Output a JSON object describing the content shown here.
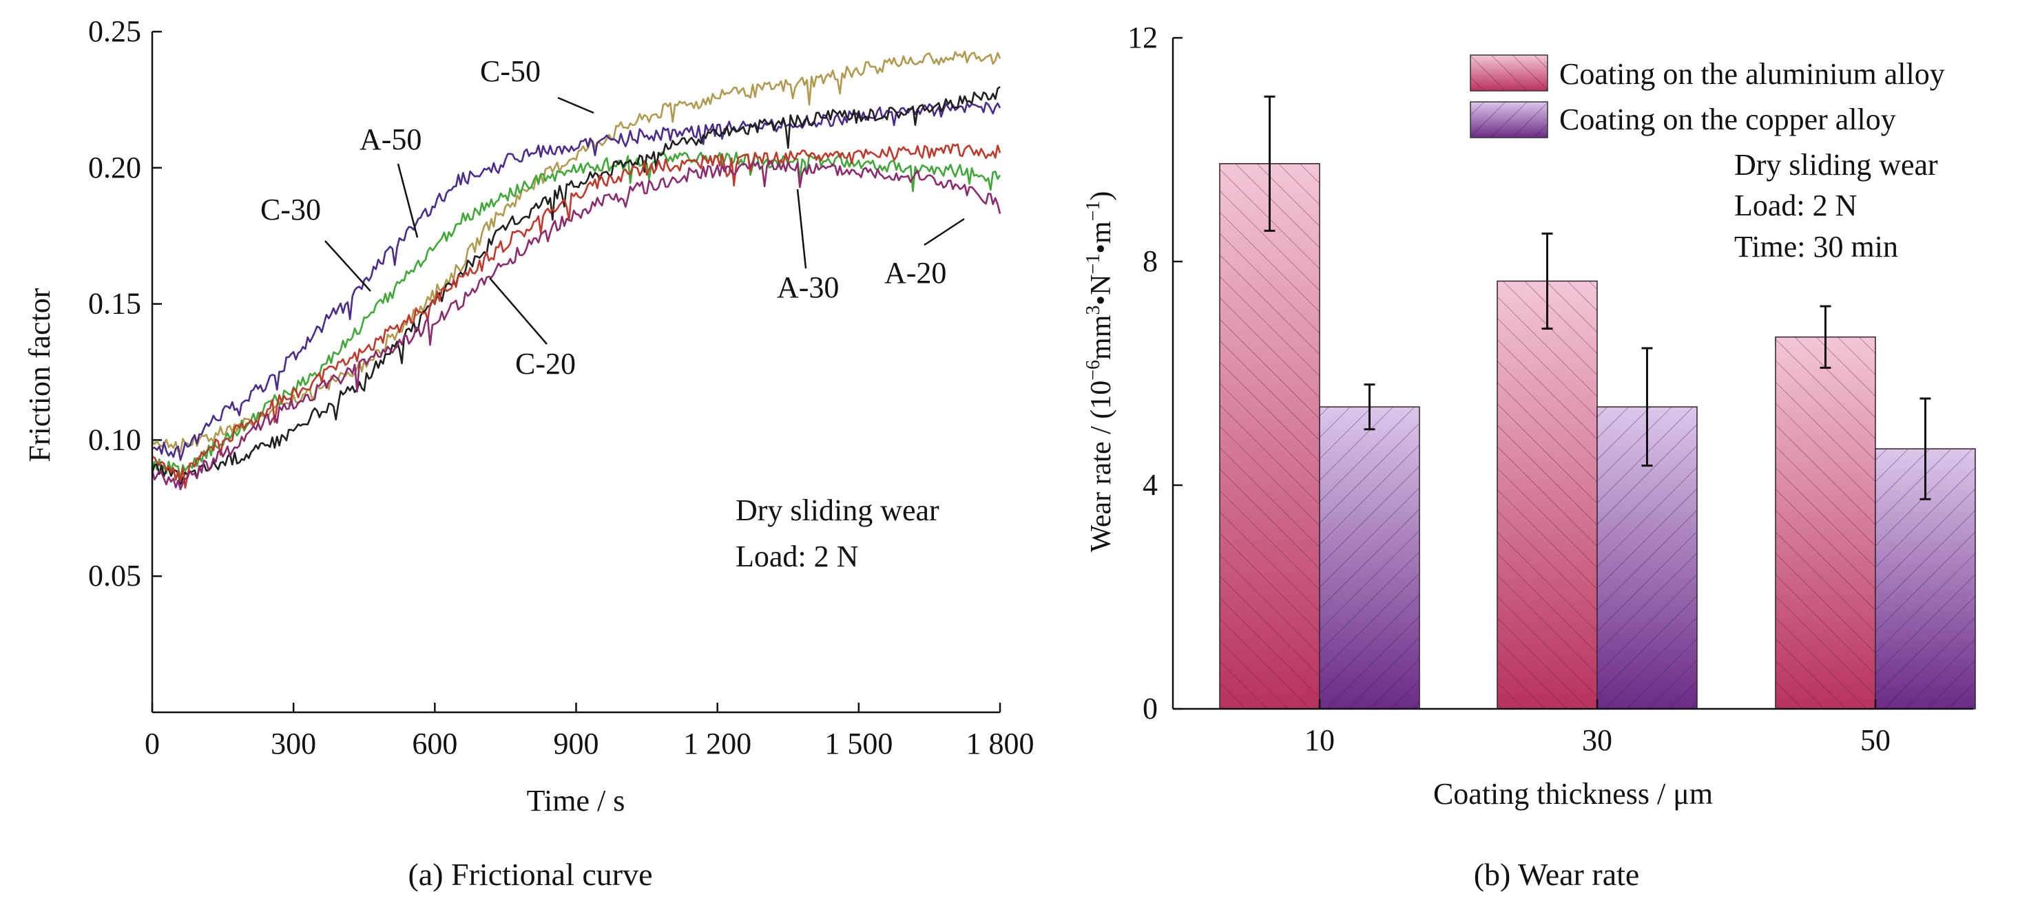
{
  "chart_data": [
    {
      "type": "line",
      "caption": "(a) Frictional curve",
      "xlabel": "Time / s",
      "ylabel": "Friction factor",
      "xlim": [
        0,
        1800
      ],
      "ylim": [
        0,
        0.25
      ],
      "xticks": [
        0,
        300,
        600,
        900,
        1200,
        1500,
        1800
      ],
      "xtick_labels": [
        "0",
        "300",
        "600",
        "900",
        "1 200",
        "1 500",
        "1 800"
      ],
      "yticks": [
        0.05,
        0.1,
        0.15,
        0.2,
        0.25
      ],
      "ytick_labels": [
        "0.05",
        "0.10",
        "0.15",
        "0.20",
        "0.25"
      ],
      "annotation": [
        "Dry sliding wear",
        "Load: 2 N"
      ],
      "series": [
        {
          "name": "C-50",
          "color": "#b09a4e",
          "points": [
            [
              0,
              0.1
            ],
            [
              60,
              0.098
            ],
            [
              150,
              0.103
            ],
            [
              250,
              0.11
            ],
            [
              350,
              0.118
            ],
            [
              450,
              0.128
            ],
            [
              550,
              0.145
            ],
            [
              650,
              0.163
            ],
            [
              720,
              0.18
            ],
            [
              800,
              0.193
            ],
            [
              900,
              0.205
            ],
            [
              1000,
              0.215
            ],
            [
              1100,
              0.222
            ],
            [
              1200,
              0.226
            ],
            [
              1300,
              0.229
            ],
            [
              1400,
              0.232
            ],
            [
              1500,
              0.236
            ],
            [
              1600,
              0.239
            ],
            [
              1700,
              0.241
            ],
            [
              1800,
              0.24
            ]
          ]
        },
        {
          "name": "A-50",
          "color": "#4b2c8c",
          "points": [
            [
              0,
              0.098
            ],
            [
              60,
              0.095
            ],
            [
              150,
              0.11
            ],
            [
              250,
              0.122
            ],
            [
              350,
              0.14
            ],
            [
              450,
              0.158
            ],
            [
              550,
              0.178
            ],
            [
              650,
              0.195
            ],
            [
              750,
              0.203
            ],
            [
              850,
              0.207
            ],
            [
              950,
              0.21
            ],
            [
              1050,
              0.212
            ],
            [
              1150,
              0.213
            ],
            [
              1250,
              0.215
            ],
            [
              1350,
              0.216
            ],
            [
              1450,
              0.218
            ],
            [
              1550,
              0.22
            ],
            [
              1650,
              0.221
            ],
            [
              1750,
              0.222
            ],
            [
              1800,
              0.222
            ]
          ]
        },
        {
          "name": "C-30",
          "color": "#3fa838",
          "points": [
            [
              0,
              0.092
            ],
            [
              60,
              0.088
            ],
            [
              150,
              0.1
            ],
            [
              250,
              0.113
            ],
            [
              350,
              0.125
            ],
            [
              450,
              0.143
            ],
            [
              550,
              0.162
            ],
            [
              650,
              0.18
            ],
            [
              750,
              0.19
            ],
            [
              850,
              0.197
            ],
            [
              950,
              0.201
            ],
            [
              1050,
              0.203
            ],
            [
              1150,
              0.204
            ],
            [
              1250,
              0.203
            ],
            [
              1350,
              0.202
            ],
            [
              1450,
              0.203
            ],
            [
              1550,
              0.201
            ],
            [
              1650,
              0.2
            ],
            [
              1750,
              0.198
            ],
            [
              1800,
              0.197
            ]
          ]
        },
        {
          "name": "A-30",
          "color": "#1f1f1f",
          "points": [
            [
              0,
              0.09
            ],
            [
              60,
              0.086
            ],
            [
              150,
              0.092
            ],
            [
              250,
              0.098
            ],
            [
              350,
              0.11
            ],
            [
              450,
              0.122
            ],
            [
              550,
              0.14
            ],
            [
              650,
              0.16
            ],
            [
              750,
              0.178
            ],
            [
              850,
              0.19
            ],
            [
              950,
              0.198
            ],
            [
              1050,
              0.205
            ],
            [
              1150,
              0.21
            ],
            [
              1250,
              0.214
            ],
            [
              1350,
              0.217
            ],
            [
              1450,
              0.219
            ],
            [
              1550,
              0.22
            ],
            [
              1650,
              0.222
            ],
            [
              1750,
              0.226
            ],
            [
              1800,
              0.228
            ]
          ]
        },
        {
          "name": "C-20",
          "color": "#c0392b",
          "points": [
            [
              0,
              0.092
            ],
            [
              60,
              0.087
            ],
            [
              150,
              0.1
            ],
            [
              250,
              0.112
            ],
            [
              350,
              0.122
            ],
            [
              450,
              0.133
            ],
            [
              550,
              0.145
            ],
            [
              650,
              0.158
            ],
            [
              750,
              0.172
            ],
            [
              850,
              0.185
            ],
            [
              950,
              0.195
            ],
            [
              1050,
              0.2
            ],
            [
              1150,
              0.202
            ],
            [
              1250,
              0.203
            ],
            [
              1350,
              0.204
            ],
            [
              1450,
              0.205
            ],
            [
              1550,
              0.205
            ],
            [
              1650,
              0.206
            ],
            [
              1750,
              0.207
            ],
            [
              1800,
              0.206
            ]
          ]
        },
        {
          "name": "A-20",
          "color": "#8c2a6e",
          "points": [
            [
              0,
              0.088
            ],
            [
              60,
              0.084
            ],
            [
              150,
              0.095
            ],
            [
              250,
              0.108
            ],
            [
              350,
              0.118
            ],
            [
              450,
              0.128
            ],
            [
              550,
              0.138
            ],
            [
              650,
              0.15
            ],
            [
              750,
              0.165
            ],
            [
              850,
              0.178
            ],
            [
              950,
              0.188
            ],
            [
              1050,
              0.193
            ],
            [
              1150,
              0.198
            ],
            [
              1250,
              0.2
            ],
            [
              1350,
              0.2
            ],
            [
              1450,
              0.199
            ],
            [
              1550,
              0.198
            ],
            [
              1650,
              0.196
            ],
            [
              1750,
              0.19
            ],
            [
              1800,
              0.187
            ]
          ]
        }
      ]
    },
    {
      "type": "bar",
      "caption": "(b) Wear rate",
      "xlabel": "Coating thickness / μm",
      "ylabel_parts": [
        "Wear rate / (10",
        "−6",
        "mm",
        "3",
        "•N",
        "−1",
        "•m",
        "−1",
        ")"
      ],
      "categories": [
        "10",
        "30",
        "50"
      ],
      "ylim": [
        0,
        12
      ],
      "yticks": [
        0,
        4,
        8,
        12
      ],
      "annotation": [
        "Dry sliding wear",
        "Load: 2 N",
        "Time: 30 min"
      ],
      "series": [
        {
          "name": "Coating on the aluminium alloy",
          "color_top": "#f3c6d8",
          "color_bottom": "#b8325d",
          "values": [
            9.75,
            7.65,
            6.65
          ],
          "errors": [
            1.2,
            0.85,
            0.55
          ]
        },
        {
          "name": "Coating on the copper alloy",
          "color_top": "#dcc7ea",
          "color_bottom": "#6b2a86",
          "values": [
            5.4,
            5.4,
            4.65
          ],
          "errors": [
            0.4,
            1.05,
            0.9
          ]
        }
      ]
    }
  ]
}
